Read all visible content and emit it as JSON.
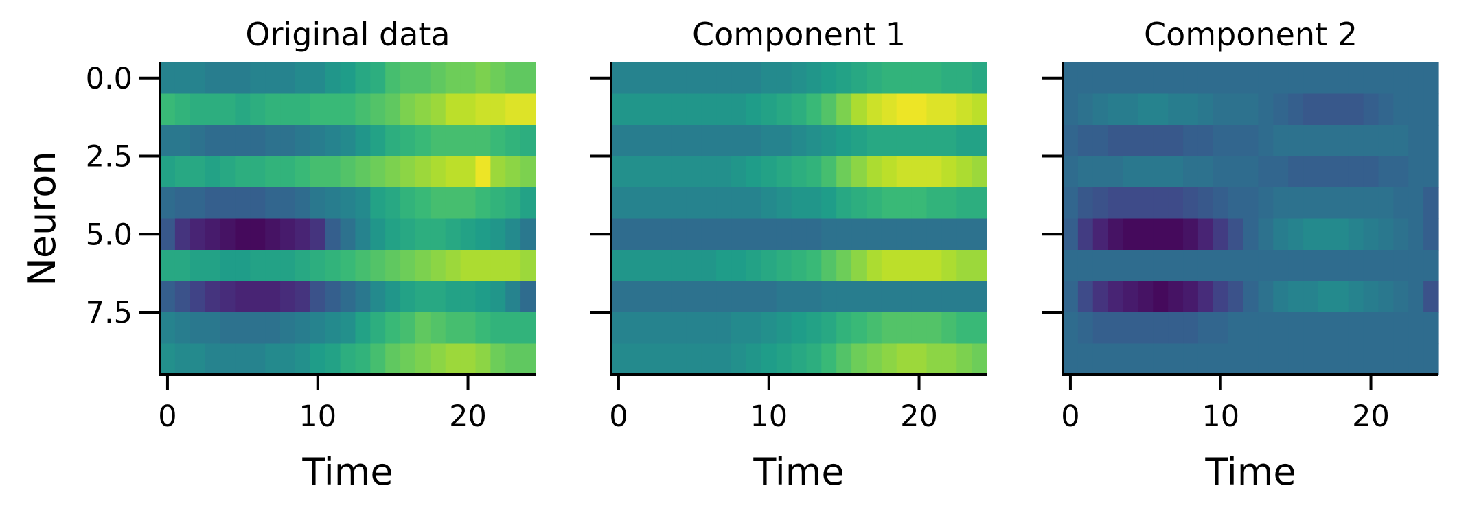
{
  "chart_data": [
    {
      "type": "heatmap",
      "title": "Original data",
      "xlabel": "Time",
      "ylabel": "Neuron",
      "xlim": [
        -0.5,
        24.5
      ],
      "ylim": [
        9.5,
        -0.5
      ],
      "xticks": [
        0,
        10,
        20
      ],
      "xtick_labels": [
        "0",
        "10",
        "20"
      ],
      "yticks": [
        0,
        2.5,
        5,
        7.5
      ],
      "ytick_labels": [
        "0.0",
        "2.5",
        "5.0",
        "7.5"
      ],
      "colormap": "viridis",
      "vmin": -2,
      "vmax": 2,
      "values": [
        [
          -0.2,
          -0.2,
          -0.2,
          -0.3,
          -0.3,
          -0.3,
          -0.2,
          -0.2,
          -0.2,
          -0.1,
          -0.1,
          0.1,
          0.2,
          0.4,
          0.5,
          0.8,
          0.9,
          0.9,
          1.0,
          1.1,
          1.1,
          1.2,
          1.1,
          1.0,
          1.0
        ],
        [
          0.7,
          0.6,
          0.5,
          0.5,
          0.5,
          0.4,
          0.5,
          0.6,
          0.6,
          0.6,
          0.7,
          0.7,
          0.7,
          0.8,
          0.9,
          1.0,
          1.2,
          1.3,
          1.4,
          1.6,
          1.6,
          1.7,
          1.7,
          1.8,
          1.8
        ],
        [
          -0.4,
          -0.4,
          -0.5,
          -0.6,
          -0.6,
          -0.6,
          -0.6,
          -0.5,
          -0.5,
          -0.4,
          -0.3,
          -0.2,
          -0.1,
          0.1,
          0.3,
          0.5,
          0.6,
          0.7,
          0.8,
          0.8,
          0.8,
          0.8,
          0.7,
          0.6,
          0.5
        ],
        [
          0.3,
          0.4,
          0.4,
          0.3,
          0.4,
          0.5,
          0.5,
          0.6,
          0.6,
          0.7,
          0.8,
          0.8,
          0.9,
          1.0,
          1.1,
          1.2,
          1.3,
          1.4,
          1.5,
          1.6,
          1.6,
          1.9,
          1.4,
          1.3,
          1.2
        ],
        [
          -0.6,
          -0.7,
          -0.7,
          -0.8,
          -0.8,
          -0.8,
          -0.8,
          -0.7,
          -0.7,
          -0.6,
          -0.4,
          -0.3,
          -0.2,
          -0.1,
          0.3,
          0.4,
          0.6,
          0.7,
          0.8,
          0.8,
          0.8,
          0.7,
          0.6,
          0.5,
          0.3
        ],
        [
          -0.9,
          -1.4,
          -1.6,
          -1.7,
          -1.8,
          -1.9,
          -1.9,
          -1.8,
          -1.7,
          -1.6,
          -1.4,
          -0.8,
          -0.5,
          -0.2,
          0.1,
          0.3,
          0.4,
          0.5,
          0.5,
          0.4,
          0.3,
          0.2,
          0.1,
          -0.1,
          -0.4
        ],
        [
          0.4,
          0.4,
          0.3,
          0.3,
          0.2,
          0.2,
          0.3,
          0.3,
          0.3,
          0.4,
          0.5,
          0.6,
          0.7,
          0.8,
          0.9,
          1.0,
          1.1,
          1.2,
          1.3,
          1.4,
          1.5,
          1.5,
          1.5,
          1.5,
          1.4
        ],
        [
          -0.8,
          -1.0,
          -1.2,
          -1.4,
          -1.5,
          -1.6,
          -1.6,
          -1.6,
          -1.5,
          -1.4,
          -1.0,
          -0.8,
          -0.6,
          -0.4,
          -0.1,
          0.1,
          0.3,
          0.4,
          0.4,
          0.3,
          0.3,
          0.2,
          0.1,
          -0.2,
          -0.6
        ],
        [
          -0.2,
          -0.3,
          -0.4,
          -0.4,
          -0.5,
          -0.5,
          -0.5,
          -0.5,
          -0.4,
          -0.3,
          -0.2,
          -0.1,
          0.0,
          0.3,
          0.5,
          0.7,
          0.8,
          1.0,
          0.9,
          0.8,
          0.8,
          0.7,
          0.6,
          0.6,
          0.6
        ],
        [
          0.0,
          -0.1,
          -0.1,
          -0.2,
          -0.2,
          -0.2,
          -0.2,
          -0.1,
          -0.1,
          0.0,
          0.2,
          0.3,
          0.5,
          0.6,
          0.8,
          1.0,
          1.1,
          1.2,
          1.3,
          1.4,
          1.4,
          1.3,
          1.1,
          1.0,
          1.0
        ]
      ]
    },
    {
      "type": "heatmap",
      "title": "Component 1",
      "xlabel": "Time",
      "ylabel": "",
      "xlim": [
        -0.5,
        24.5
      ],
      "ylim": [
        9.5,
        -0.5
      ],
      "xticks": [
        0,
        10,
        20
      ],
      "xtick_labels": [
        "0",
        "10",
        "20"
      ],
      "yticks": [
        0,
        2.5,
        5,
        7.5
      ],
      "ytick_labels": [
        "",
        "",
        "",
        ""
      ],
      "colormap": "viridis",
      "vmin": -2,
      "vmax": 2,
      "values": [
        [
          -0.2,
          -0.2,
          -0.2,
          -0.2,
          -0.2,
          -0.2,
          -0.2,
          -0.2,
          -0.2,
          -0.2,
          -0.1,
          -0.1,
          0.0,
          0.1,
          0.2,
          0.3,
          0.4,
          0.5,
          0.6,
          0.6,
          0.6,
          0.6,
          0.5,
          0.5,
          0.4
        ],
        [
          0.1,
          0.1,
          0.1,
          0.1,
          0.1,
          0.1,
          0.1,
          0.1,
          0.1,
          0.2,
          0.3,
          0.4,
          0.5,
          0.7,
          0.9,
          1.2,
          1.5,
          1.7,
          1.8,
          1.9,
          1.9,
          1.8,
          1.8,
          1.7,
          1.6
        ],
        [
          -0.3,
          -0.3,
          -0.3,
          -0.3,
          -0.3,
          -0.3,
          -0.3,
          -0.3,
          -0.3,
          -0.3,
          -0.2,
          -0.2,
          -0.1,
          0.0,
          0.1,
          0.2,
          0.3,
          0.4,
          0.4,
          0.4,
          0.4,
          0.4,
          0.4,
          0.3,
          0.3
        ],
        [
          0.0,
          0.0,
          0.0,
          0.0,
          0.0,
          0.0,
          0.0,
          0.0,
          0.1,
          0.2,
          0.3,
          0.4,
          0.5,
          0.6,
          0.8,
          1.1,
          1.3,
          1.5,
          1.6,
          1.7,
          1.7,
          1.7,
          1.6,
          1.5,
          1.4
        ],
        [
          -0.2,
          -0.2,
          -0.2,
          -0.2,
          -0.2,
          -0.2,
          -0.2,
          -0.2,
          -0.2,
          -0.2,
          -0.1,
          0.0,
          0.1,
          0.1,
          0.2,
          0.4,
          0.5,
          0.6,
          0.7,
          0.7,
          0.7,
          0.6,
          0.6,
          0.5,
          0.5
        ],
        [
          -0.6,
          -0.6,
          -0.6,
          -0.6,
          -0.6,
          -0.6,
          -0.6,
          -0.6,
          -0.6,
          -0.6,
          -0.6,
          -0.6,
          -0.6,
          -0.6,
          -0.5,
          -0.5,
          -0.5,
          -0.5,
          -0.5,
          -0.5,
          -0.5,
          -0.5,
          -0.5,
          -0.5,
          -0.5
        ],
        [
          0.1,
          0.1,
          0.1,
          0.1,
          0.1,
          0.1,
          0.1,
          0.2,
          0.2,
          0.3,
          0.4,
          0.5,
          0.6,
          0.7,
          0.9,
          1.1,
          1.3,
          1.5,
          1.6,
          1.6,
          1.6,
          1.6,
          1.5,
          1.4,
          1.4
        ],
        [
          -0.5,
          -0.5,
          -0.5,
          -0.5,
          -0.5,
          -0.5,
          -0.5,
          -0.5,
          -0.5,
          -0.5,
          -0.5,
          -0.4,
          -0.4,
          -0.4,
          -0.3,
          -0.3,
          -0.3,
          -0.3,
          -0.3,
          -0.3,
          -0.3,
          -0.3,
          -0.3,
          -0.3,
          -0.3
        ],
        [
          -0.2,
          -0.2,
          -0.2,
          -0.2,
          -0.2,
          -0.2,
          -0.2,
          -0.2,
          -0.1,
          -0.1,
          0.0,
          0.1,
          0.2,
          0.3,
          0.4,
          0.6,
          0.7,
          0.8,
          0.9,
          0.9,
          0.9,
          0.9,
          0.8,
          0.7,
          0.7
        ],
        [
          -0.1,
          -0.1,
          -0.1,
          -0.1,
          -0.1,
          -0.1,
          -0.1,
          -0.1,
          0.0,
          0.1,
          0.2,
          0.3,
          0.4,
          0.5,
          0.7,
          0.9,
          1.1,
          1.2,
          1.3,
          1.4,
          1.4,
          1.3,
          1.3,
          1.2,
          1.1
        ]
      ]
    },
    {
      "type": "heatmap",
      "title": "Component 2",
      "xlabel": "Time",
      "ylabel": "",
      "xlim": [
        -0.5,
        24.5
      ],
      "ylim": [
        9.5,
        -0.5
      ],
      "xticks": [
        0,
        10,
        20
      ],
      "xtick_labels": [
        "0",
        "10",
        "20"
      ],
      "yticks": [
        0,
        2.5,
        5,
        7.5
      ],
      "ytick_labels": [
        "",
        "",
        "",
        ""
      ],
      "colormap": "viridis",
      "vmin": -2,
      "vmax": 2,
      "values": [
        [
          -0.6,
          -0.6,
          -0.6,
          -0.6,
          -0.6,
          -0.6,
          -0.6,
          -0.6,
          -0.6,
          -0.6,
          -0.6,
          -0.6,
          -0.6,
          -0.6,
          -0.6,
          -0.6,
          -0.6,
          -0.6,
          -0.6,
          -0.6,
          -0.6,
          -0.6,
          -0.6,
          -0.6,
          -0.6
        ],
        [
          -0.6,
          -0.5,
          -0.4,
          -0.3,
          -0.3,
          -0.2,
          -0.2,
          -0.3,
          -0.3,
          -0.4,
          -0.5,
          -0.5,
          -0.5,
          -0.6,
          -0.7,
          -0.8,
          -0.9,
          -0.9,
          -0.9,
          -0.9,
          -0.8,
          -0.7,
          -0.6,
          -0.6,
          -0.6
        ],
        [
          -0.7,
          -0.8,
          -0.8,
          -0.9,
          -0.9,
          -0.9,
          -0.9,
          -0.9,
          -0.8,
          -0.8,
          -0.7,
          -0.7,
          -0.7,
          -0.6,
          -0.5,
          -0.5,
          -0.5,
          -0.5,
          -0.5,
          -0.5,
          -0.5,
          -0.5,
          -0.5,
          -0.6,
          -0.6
        ],
        [
          -0.6,
          -0.5,
          -0.5,
          -0.5,
          -0.4,
          -0.4,
          -0.4,
          -0.4,
          -0.5,
          -0.5,
          -0.6,
          -0.6,
          -0.6,
          -0.7,
          -0.7,
          -0.8,
          -0.8,
          -0.8,
          -0.8,
          -0.8,
          -0.8,
          -0.7,
          -0.7,
          -0.6,
          -0.6
        ],
        [
          -0.7,
          -0.9,
          -1.0,
          -1.1,
          -1.1,
          -1.1,
          -1.1,
          -1.1,
          -1.0,
          -0.9,
          -0.8,
          -0.7,
          -0.7,
          -0.6,
          -0.5,
          -0.5,
          -0.5,
          -0.5,
          -0.5,
          -0.5,
          -0.5,
          -0.5,
          -0.6,
          -0.6,
          -0.8
        ],
        [
          -0.8,
          -1.3,
          -1.6,
          -1.8,
          -1.9,
          -1.9,
          -1.9,
          -1.9,
          -1.8,
          -1.6,
          -1.3,
          -1.0,
          -0.7,
          -0.5,
          -0.3,
          -0.2,
          -0.1,
          -0.1,
          -0.1,
          -0.2,
          -0.3,
          -0.4,
          -0.5,
          -0.6,
          -0.8
        ],
        [
          -0.6,
          -0.6,
          -0.6,
          -0.6,
          -0.6,
          -0.6,
          -0.6,
          -0.6,
          -0.6,
          -0.6,
          -0.6,
          -0.6,
          -0.6,
          -0.6,
          -0.6,
          -0.6,
          -0.6,
          -0.6,
          -0.6,
          -0.6,
          -0.6,
          -0.6,
          -0.6,
          -0.6,
          -0.6
        ],
        [
          -0.7,
          -1.1,
          -1.4,
          -1.6,
          -1.7,
          -1.8,
          -1.9,
          -1.8,
          -1.7,
          -1.5,
          -1.2,
          -1.0,
          -0.7,
          -0.5,
          -0.3,
          -0.2,
          -0.2,
          -0.1,
          -0.1,
          -0.2,
          -0.3,
          -0.4,
          -0.5,
          -0.6,
          -1.0
        ],
        [
          -0.6,
          -0.7,
          -0.8,
          -0.8,
          -0.8,
          -0.8,
          -0.8,
          -0.8,
          -0.8,
          -0.7,
          -0.7,
          -0.6,
          -0.6,
          -0.6,
          -0.6,
          -0.6,
          -0.6,
          -0.6,
          -0.6,
          -0.6,
          -0.6,
          -0.6,
          -0.6,
          -0.6,
          -0.6
        ],
        [
          -0.6,
          -0.6,
          -0.6,
          -0.6,
          -0.6,
          -0.6,
          -0.6,
          -0.6,
          -0.6,
          -0.6,
          -0.6,
          -0.6,
          -0.6,
          -0.6,
          -0.6,
          -0.6,
          -0.6,
          -0.6,
          -0.6,
          -0.6,
          -0.6,
          -0.6,
          -0.6,
          -0.6,
          -0.6
        ]
      ]
    }
  ]
}
